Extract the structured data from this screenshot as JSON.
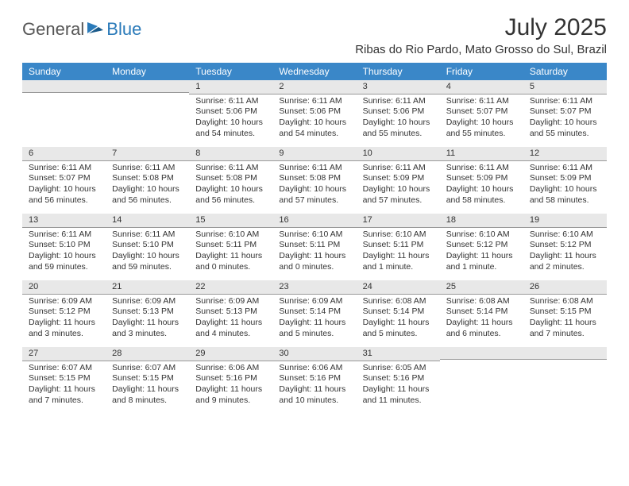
{
  "brand": {
    "general": "General",
    "blue": "Blue"
  },
  "title": "July 2025",
  "location": "Ribas do Rio Pardo, Mato Grosso do Sul, Brazil",
  "colors": {
    "header_bg": "#3a87c8",
    "header_text": "#ffffff",
    "day_header_bg": "#e8e8e8",
    "day_header_border": "#999999",
    "body_text": "#333333",
    "brand_blue": "#2a7ab9",
    "brand_gray": "#555555"
  },
  "weekdays": [
    "Sunday",
    "Monday",
    "Tuesday",
    "Wednesday",
    "Thursday",
    "Friday",
    "Saturday"
  ],
  "weeks": [
    [
      {
        "n": null
      },
      {
        "n": null
      },
      {
        "n": "1",
        "sr": "Sunrise: 6:11 AM",
        "ss": "Sunset: 5:06 PM",
        "dl": "Daylight: 10 hours and 54 minutes."
      },
      {
        "n": "2",
        "sr": "Sunrise: 6:11 AM",
        "ss": "Sunset: 5:06 PM",
        "dl": "Daylight: 10 hours and 54 minutes."
      },
      {
        "n": "3",
        "sr": "Sunrise: 6:11 AM",
        "ss": "Sunset: 5:06 PM",
        "dl": "Daylight: 10 hours and 55 minutes."
      },
      {
        "n": "4",
        "sr": "Sunrise: 6:11 AM",
        "ss": "Sunset: 5:07 PM",
        "dl": "Daylight: 10 hours and 55 minutes."
      },
      {
        "n": "5",
        "sr": "Sunrise: 6:11 AM",
        "ss": "Sunset: 5:07 PM",
        "dl": "Daylight: 10 hours and 55 minutes."
      }
    ],
    [
      {
        "n": "6",
        "sr": "Sunrise: 6:11 AM",
        "ss": "Sunset: 5:07 PM",
        "dl": "Daylight: 10 hours and 56 minutes."
      },
      {
        "n": "7",
        "sr": "Sunrise: 6:11 AM",
        "ss": "Sunset: 5:08 PM",
        "dl": "Daylight: 10 hours and 56 minutes."
      },
      {
        "n": "8",
        "sr": "Sunrise: 6:11 AM",
        "ss": "Sunset: 5:08 PM",
        "dl": "Daylight: 10 hours and 56 minutes."
      },
      {
        "n": "9",
        "sr": "Sunrise: 6:11 AM",
        "ss": "Sunset: 5:08 PM",
        "dl": "Daylight: 10 hours and 57 minutes."
      },
      {
        "n": "10",
        "sr": "Sunrise: 6:11 AM",
        "ss": "Sunset: 5:09 PM",
        "dl": "Daylight: 10 hours and 57 minutes."
      },
      {
        "n": "11",
        "sr": "Sunrise: 6:11 AM",
        "ss": "Sunset: 5:09 PM",
        "dl": "Daylight: 10 hours and 58 minutes."
      },
      {
        "n": "12",
        "sr": "Sunrise: 6:11 AM",
        "ss": "Sunset: 5:09 PM",
        "dl": "Daylight: 10 hours and 58 minutes."
      }
    ],
    [
      {
        "n": "13",
        "sr": "Sunrise: 6:11 AM",
        "ss": "Sunset: 5:10 PM",
        "dl": "Daylight: 10 hours and 59 minutes."
      },
      {
        "n": "14",
        "sr": "Sunrise: 6:11 AM",
        "ss": "Sunset: 5:10 PM",
        "dl": "Daylight: 10 hours and 59 minutes."
      },
      {
        "n": "15",
        "sr": "Sunrise: 6:10 AM",
        "ss": "Sunset: 5:11 PM",
        "dl": "Daylight: 11 hours and 0 minutes."
      },
      {
        "n": "16",
        "sr": "Sunrise: 6:10 AM",
        "ss": "Sunset: 5:11 PM",
        "dl": "Daylight: 11 hours and 0 minutes."
      },
      {
        "n": "17",
        "sr": "Sunrise: 6:10 AM",
        "ss": "Sunset: 5:11 PM",
        "dl": "Daylight: 11 hours and 1 minute."
      },
      {
        "n": "18",
        "sr": "Sunrise: 6:10 AM",
        "ss": "Sunset: 5:12 PM",
        "dl": "Daylight: 11 hours and 1 minute."
      },
      {
        "n": "19",
        "sr": "Sunrise: 6:10 AM",
        "ss": "Sunset: 5:12 PM",
        "dl": "Daylight: 11 hours and 2 minutes."
      }
    ],
    [
      {
        "n": "20",
        "sr": "Sunrise: 6:09 AM",
        "ss": "Sunset: 5:12 PM",
        "dl": "Daylight: 11 hours and 3 minutes."
      },
      {
        "n": "21",
        "sr": "Sunrise: 6:09 AM",
        "ss": "Sunset: 5:13 PM",
        "dl": "Daylight: 11 hours and 3 minutes."
      },
      {
        "n": "22",
        "sr": "Sunrise: 6:09 AM",
        "ss": "Sunset: 5:13 PM",
        "dl": "Daylight: 11 hours and 4 minutes."
      },
      {
        "n": "23",
        "sr": "Sunrise: 6:09 AM",
        "ss": "Sunset: 5:14 PM",
        "dl": "Daylight: 11 hours and 5 minutes."
      },
      {
        "n": "24",
        "sr": "Sunrise: 6:08 AM",
        "ss": "Sunset: 5:14 PM",
        "dl": "Daylight: 11 hours and 5 minutes."
      },
      {
        "n": "25",
        "sr": "Sunrise: 6:08 AM",
        "ss": "Sunset: 5:14 PM",
        "dl": "Daylight: 11 hours and 6 minutes."
      },
      {
        "n": "26",
        "sr": "Sunrise: 6:08 AM",
        "ss": "Sunset: 5:15 PM",
        "dl": "Daylight: 11 hours and 7 minutes."
      }
    ],
    [
      {
        "n": "27",
        "sr": "Sunrise: 6:07 AM",
        "ss": "Sunset: 5:15 PM",
        "dl": "Daylight: 11 hours and 7 minutes."
      },
      {
        "n": "28",
        "sr": "Sunrise: 6:07 AM",
        "ss": "Sunset: 5:15 PM",
        "dl": "Daylight: 11 hours and 8 minutes."
      },
      {
        "n": "29",
        "sr": "Sunrise: 6:06 AM",
        "ss": "Sunset: 5:16 PM",
        "dl": "Daylight: 11 hours and 9 minutes."
      },
      {
        "n": "30",
        "sr": "Sunrise: 6:06 AM",
        "ss": "Sunset: 5:16 PM",
        "dl": "Daylight: 11 hours and 10 minutes."
      },
      {
        "n": "31",
        "sr": "Sunrise: 6:05 AM",
        "ss": "Sunset: 5:16 PM",
        "dl": "Daylight: 11 hours and 11 minutes."
      },
      {
        "n": null
      },
      {
        "n": null
      }
    ]
  ]
}
